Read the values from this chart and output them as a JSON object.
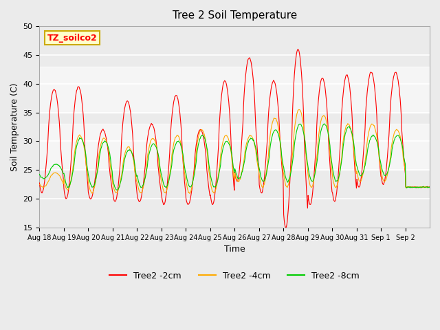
{
  "title": "Tree 2 Soil Temperature",
  "xlabel": "Time",
  "ylabel": "Soil Temperature (C)",
  "ylim": [
    15,
    50
  ],
  "yticks": [
    15,
    20,
    25,
    30,
    35,
    40,
    45,
    50
  ],
  "annotation_text": "TZ_soilco2",
  "annotation_bg": "#ffffcc",
  "annotation_border": "#ccaa00",
  "color_2cm": "#ff0000",
  "color_4cm": "#ffaa00",
  "color_8cm": "#00cc00",
  "legend_labels": [
    "Tree2 -2cm",
    "Tree2 -4cm",
    "Tree2 -8cm"
  ],
  "x_tick_labels": [
    "Aug 18",
    "Aug 19",
    "Aug 20",
    "Aug 21",
    "Aug 22",
    "Aug 23",
    "Aug 24",
    "Aug 25",
    "Aug 26",
    "Aug 27",
    "Aug 28",
    "Aug 29",
    "Aug 30",
    "Aug 31",
    "Sep 1",
    "Sep 2"
  ],
  "background_color": "#ebebeb",
  "n_days": 16,
  "peaks_2cm": [
    39,
    39.5,
    32,
    37,
    33,
    38,
    32,
    40.5,
    44.5,
    40.5,
    46,
    41,
    41.5,
    42,
    42,
    22
  ],
  "troughs_2cm": [
    21,
    20,
    20,
    19.5,
    19.5,
    19,
    19,
    19,
    23,
    21,
    15,
    19,
    19.5,
    22,
    22.5,
    22
  ],
  "peaks_4cm": [
    24.5,
    31,
    30.5,
    29,
    30.5,
    31,
    32,
    31,
    31,
    34,
    35.5,
    34.5,
    33,
    33,
    32,
    22
  ],
  "troughs_4cm": [
    22,
    21.5,
    21,
    21,
    21,
    21,
    21,
    21,
    23,
    22,
    22,
    22,
    22,
    23,
    23,
    22
  ],
  "peaks_8cm": [
    26,
    30.5,
    30,
    28.5,
    29.5,
    30,
    31,
    30,
    30.5,
    32,
    33,
    33,
    32.5,
    31,
    31,
    22
  ],
  "troughs_8cm": [
    23.5,
    22,
    22,
    21.5,
    22,
    22,
    22,
    22,
    23.5,
    23,
    23,
    23,
    23,
    24,
    24,
    22
  ]
}
